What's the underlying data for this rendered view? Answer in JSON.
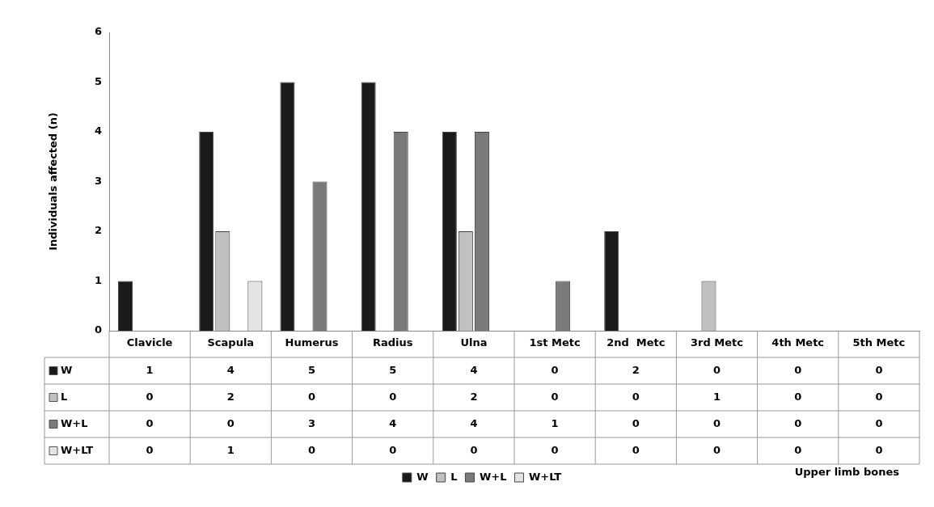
{
  "chart_data": {
    "type": "bar",
    "ylabel": "Individuals affected (n)",
    "annotations": [
      "Upper limb bones"
    ],
    "categories": [
      "Clavicle",
      "Scapula",
      "Humerus",
      "Radius",
      "Ulna",
      "1st Metc",
      "2nd  Metc",
      "3rd Metc",
      "4th Metc",
      "5th Metc"
    ],
    "series": [
      {
        "name": "W",
        "color": "#1a1a1a",
        "values": [
          1,
          4,
          5,
          5,
          4,
          0,
          2,
          0,
          0,
          0
        ]
      },
      {
        "name": "L",
        "color": "#c0c0c0",
        "values": [
          0,
          2,
          0,
          0,
          2,
          0,
          0,
          1,
          0,
          0
        ]
      },
      {
        "name": "W+L",
        "color": "#7a7a7a",
        "values": [
          0,
          0,
          3,
          4,
          4,
          1,
          0,
          0,
          0,
          0
        ]
      },
      {
        "name": "W+LT",
        "color": "#e4e4e4",
        "values": [
          0,
          1,
          0,
          0,
          0,
          0,
          0,
          0,
          0,
          0
        ]
      }
    ],
    "ylim": [
      0,
      6
    ],
    "yticks": [
      0,
      1,
      2,
      3,
      4,
      5,
      6
    ],
    "grid": false,
    "legend": "bottom",
    "data_labels": true
  }
}
